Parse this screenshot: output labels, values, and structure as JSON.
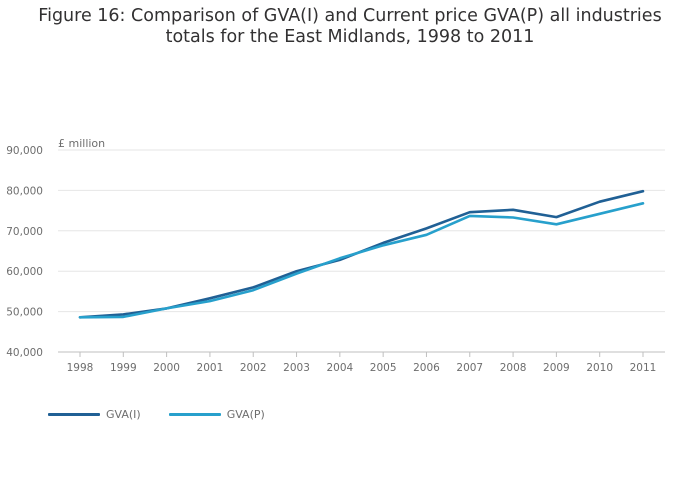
{
  "title_line1": "Figure 16: Comparison of GVA(I) and Current price GVA(P) all industries",
  "title_line2": "totals for the East Midlands, 1998 to 2011",
  "chart_data": {
    "type": "line",
    "title": "Figure 16: Comparison of GVA(I) and Current price GVA(P) all industries totals for the East Midlands, 1998 to 2011",
    "unit_label": "£ million",
    "xlabel": "",
    "ylabel": "£ million",
    "ylim": [
      40000,
      90000
    ],
    "yticks": [
      "40,000",
      "50,000",
      "60,000",
      "70,000",
      "80,000",
      "90,000"
    ],
    "ytick_values": [
      40000,
      50000,
      60000,
      70000,
      80000,
      90000
    ],
    "grid": true,
    "legend_placement": "bottom-left",
    "x": [
      "1998",
      "1999",
      "2000",
      "2001",
      "2002",
      "2003",
      "2004",
      "2005",
      "2006",
      "2007",
      "2008",
      "2009",
      "2010",
      "2011"
    ],
    "series": [
      {
        "name": "GVA(I)",
        "color": "#206095",
        "values": [
          48600,
          49300,
          50800,
          53300,
          56000,
          60000,
          62800,
          67000,
          70600,
          74600,
          75200,
          73400,
          77200,
          79800
        ]
      },
      {
        "name": "GVA(P)",
        "color": "#27a0cc",
        "values": [
          48600,
          48700,
          50800,
          52600,
          55300,
          59400,
          63200,
          66400,
          69000,
          73700,
          73300,
          71600,
          74200,
          76800
        ]
      }
    ]
  }
}
